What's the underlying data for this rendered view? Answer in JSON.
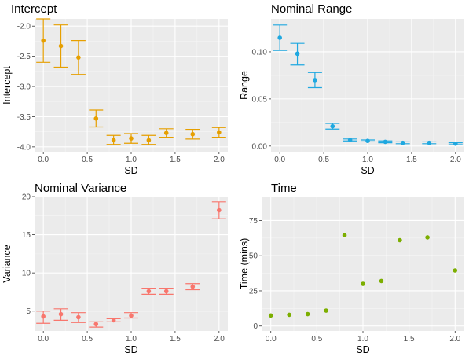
{
  "chart_data": [
    {
      "type": "scatter",
      "title": "Intercept",
      "xlabel": "SD",
      "ylabel": "Intercept",
      "color": "#E69F00",
      "error_bars": true,
      "xlim": [
        -0.1,
        2.1
      ],
      "ylim": [
        -4.08,
        -1.88
      ],
      "xticks": [
        0.0,
        0.5,
        1.0,
        1.5,
        2.0
      ],
      "xtick_labels": [
        "0.0",
        "0.5",
        "1.0",
        "1.5",
        "2.0"
      ],
      "yticks": [
        -2.0,
        -2.5,
        -3.0,
        -3.5,
        -4.0
      ],
      "ytick_labels": [
        "-2.0",
        "-2.5",
        "-3.0",
        "-3.5",
        "-4.0"
      ],
      "points": [
        {
          "x": 0.0,
          "y": -2.24,
          "lo": -2.6,
          "hi": -1.88
        },
        {
          "x": 0.2,
          "y": -2.33,
          "lo": -2.68,
          "hi": -1.98
        },
        {
          "x": 0.4,
          "y": -2.52,
          "lo": -2.8,
          "hi": -2.24
        },
        {
          "x": 0.6,
          "y": -3.53,
          "lo": -3.67,
          "hi": -3.39
        },
        {
          "x": 0.8,
          "y": -3.89,
          "lo": -3.96,
          "hi": -3.81
        },
        {
          "x": 1.0,
          "y": -3.86,
          "lo": -3.94,
          "hi": -3.78
        },
        {
          "x": 1.2,
          "y": -3.89,
          "lo": -3.96,
          "hi": -3.81
        },
        {
          "x": 1.4,
          "y": -3.77,
          "lo": -3.84,
          "hi": -3.7
        },
        {
          "x": 1.7,
          "y": -3.79,
          "lo": -3.87,
          "hi": -3.71
        },
        {
          "x": 2.0,
          "y": -3.76,
          "lo": -3.84,
          "hi": -3.68
        }
      ]
    },
    {
      "type": "scatter",
      "title": "Nominal Range",
      "xlabel": "SD",
      "ylabel": "Range",
      "color": "#1FA8E0",
      "error_bars": true,
      "xlim": [
        -0.1,
        2.1
      ],
      "ylim": [
        -0.006,
        0.135
      ],
      "xticks": [
        0.0,
        0.5,
        1.0,
        1.5,
        2.0
      ],
      "xtick_labels": [
        "0.0",
        "0.5",
        "1.0",
        "1.5",
        "2.0"
      ],
      "yticks": [
        0.0,
        0.05,
        0.1
      ],
      "ytick_labels": [
        "0.00",
        "0.05",
        "0.10"
      ],
      "points": [
        {
          "x": 0.0,
          "y": 0.115,
          "lo": 0.1015,
          "hi": 0.1285
        },
        {
          "x": 0.2,
          "y": 0.098,
          "lo": 0.086,
          "hi": 0.109
        },
        {
          "x": 0.4,
          "y": 0.07,
          "lo": 0.062,
          "hi": 0.078
        },
        {
          "x": 0.6,
          "y": 0.021,
          "lo": 0.018,
          "hi": 0.024
        },
        {
          "x": 0.8,
          "y": 0.0065,
          "lo": 0.0055,
          "hi": 0.0075
        },
        {
          "x": 1.0,
          "y": 0.0055,
          "lo": 0.0045,
          "hi": 0.0065
        },
        {
          "x": 1.2,
          "y": 0.0045,
          "lo": 0.0035,
          "hi": 0.0055
        },
        {
          "x": 1.4,
          "y": 0.0035,
          "lo": 0.0025,
          "hi": 0.0045
        },
        {
          "x": 1.7,
          "y": 0.0035,
          "lo": 0.0025,
          "hi": 0.0045
        },
        {
          "x": 2.0,
          "y": 0.0025,
          "lo": 0.0015,
          "hi": 0.0035
        }
      ]
    },
    {
      "type": "scatter",
      "title": "Nominal Variance",
      "xlabel": "SD",
      "ylabel": "Variance",
      "color": "#F8766D",
      "error_bars": true,
      "xlim": [
        -0.1,
        2.1
      ],
      "ylim": [
        2.4,
        20.0
      ],
      "xticks": [
        0.0,
        0.5,
        1.0,
        1.5,
        2.0
      ],
      "xtick_labels": [
        "0.0",
        "0.5",
        "1.0",
        "1.5",
        "2.0"
      ],
      "yticks": [
        5,
        10,
        15,
        20
      ],
      "ytick_labels": [
        "5",
        "10",
        "15",
        "20"
      ],
      "points": [
        {
          "x": 0.0,
          "y": 4.3,
          "lo": 3.4,
          "hi": 5.0
        },
        {
          "x": 0.2,
          "y": 4.6,
          "lo": 3.8,
          "hi": 5.3
        },
        {
          "x": 0.4,
          "y": 4.2,
          "lo": 3.5,
          "hi": 4.8
        },
        {
          "x": 0.6,
          "y": 3.3,
          "lo": 2.9,
          "hi": 3.6
        },
        {
          "x": 0.8,
          "y": 3.8,
          "lo": 3.6,
          "hi": 4.0
        },
        {
          "x": 1.0,
          "y": 4.4,
          "lo": 4.1,
          "hi": 4.8
        },
        {
          "x": 1.2,
          "y": 7.6,
          "lo": 7.2,
          "hi": 8.0
        },
        {
          "x": 1.4,
          "y": 7.6,
          "lo": 7.2,
          "hi": 8.0
        },
        {
          "x": 1.7,
          "y": 8.2,
          "lo": 7.8,
          "hi": 8.6
        },
        {
          "x": 2.0,
          "y": 18.2,
          "lo": 17.1,
          "hi": 19.3
        }
      ]
    },
    {
      "type": "scatter",
      "title": "Time",
      "xlabel": "SD",
      "ylabel": "Time (mins)",
      "color": "#7CAE00",
      "error_bars": false,
      "xlim": [
        -0.1,
        2.1
      ],
      "ylim": [
        -3.5,
        92.0
      ],
      "xticks": [
        0.0,
        0.5,
        1.0,
        1.5,
        2.0
      ],
      "xtick_labels": [
        "0.0",
        "0.5",
        "1.0",
        "1.5",
        "2.0"
      ],
      "yticks": [
        0,
        25,
        50,
        75
      ],
      "ytick_labels": [
        "0",
        "25",
        "50",
        "75"
      ],
      "points": [
        {
          "x": 0.0,
          "y": 7.5
        },
        {
          "x": 0.2,
          "y": 8.0
        },
        {
          "x": 0.4,
          "y": 8.5
        },
        {
          "x": 0.6,
          "y": 11.0
        },
        {
          "x": 0.8,
          "y": 64.5
        },
        {
          "x": 1.0,
          "y": 30.0
        },
        {
          "x": 1.2,
          "y": 32.0
        },
        {
          "x": 1.4,
          "y": 61.0
        },
        {
          "x": 1.7,
          "y": 63.0
        },
        {
          "x": 2.0,
          "y": 39.5
        }
      ]
    }
  ]
}
